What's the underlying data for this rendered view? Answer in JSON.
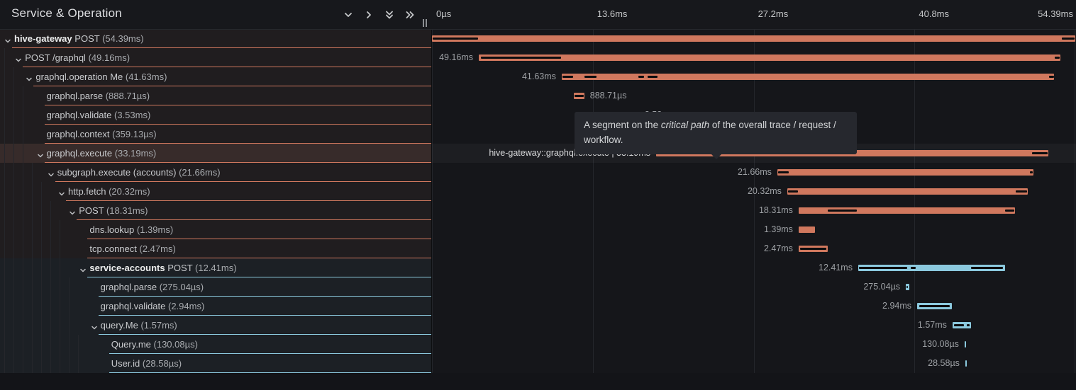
{
  "header": {
    "title": "Service & Operation",
    "controls": [
      {
        "name": "collapse-one-button",
        "icon": "chevron-down-icon"
      },
      {
        "name": "expand-one-button",
        "icon": "chevron-right-icon"
      },
      {
        "name": "collapse-all-button",
        "icon": "chevrons-down-icon"
      },
      {
        "name": "expand-all-button",
        "icon": "chevrons-right-icon"
      }
    ],
    "resizer_icon": "column-resize-handle"
  },
  "colors": {
    "salmon": "#d0785e",
    "blue": "#8bc9de",
    "critical_path": "#0b0c0e",
    "salmon_row_tint": "rgba(208,120,94,0.055)",
    "blue_row_tint": "rgba(139,201,222,0.05)",
    "highlight_row_tint": "rgba(214,140,110,0.17)"
  },
  "timeline": {
    "total_label": "54.39ms",
    "total_ms": 54.39,
    "ticks": [
      {
        "label": "0µs",
        "ms": 0,
        "align": "left"
      },
      {
        "label": "13.6ms",
        "ms": 13.6,
        "align": "left"
      },
      {
        "label": "27.2ms",
        "ms": 27.2,
        "align": "left"
      },
      {
        "label": "40.8ms",
        "ms": 40.8,
        "align": "left"
      },
      {
        "label": "54.39ms",
        "ms": 54.39,
        "align": "right"
      }
    ]
  },
  "tooltip": {
    "parts": [
      {
        "text": "A segment on the "
      },
      {
        "text": "critical path",
        "italic": true
      },
      {
        "text": " of the overall trace / request /"
      },
      {
        "break": true
      },
      {
        "text": "workflow."
      }
    ]
  },
  "rows": [
    {
      "service": "hive-gateway",
      "name": "POST",
      "duration": "54.39ms",
      "depth": 0,
      "expandable": true,
      "color": "salmon",
      "bar": {
        "start_ms": 0,
        "dur_ms": 54.39
      },
      "crit": [
        [
          0.06,
          3.9
        ],
        [
          53.25,
          54.33
        ]
      ],
      "label": null
    },
    {
      "name": "POST /graphql",
      "duration": "49.16ms",
      "depth": 1,
      "expandable": true,
      "color": "salmon",
      "bar": {
        "start_ms": 3.96,
        "dur_ms": 49.16
      },
      "crit": [
        [
          4.14,
          10.91
        ],
        [
          52.65,
          53.07
        ]
      ],
      "label": {
        "text": "49.16ms",
        "side": "left"
      }
    },
    {
      "name": "graphql.operation Me",
      "duration": "41.63ms",
      "depth": 2,
      "expandable": true,
      "color": "salmon",
      "bar": {
        "start_ms": 10.97,
        "dur_ms": 41.63
      },
      "crit": [
        [
          11.03,
          11.93
        ],
        [
          12.89,
          13.91
        ],
        [
          17.45,
          17.93
        ],
        [
          18.23,
          19.07
        ],
        [
          52.17,
          52.59
        ]
      ],
      "label": {
        "text": "41.63ms",
        "side": "left"
      }
    },
    {
      "name": "graphql.parse",
      "duration": "888.71µs",
      "depth": 3,
      "expandable": false,
      "color": "salmon",
      "bar": {
        "start_ms": 11.99,
        "dur_ms": 0.889
      },
      "crit": [
        [
          12.05,
          12.83
        ]
      ],
      "label": {
        "text": "888.71µs",
        "side": "right"
      }
    },
    {
      "name": "graphql.validate",
      "duration": "3.53ms",
      "depth": 3,
      "expandable": false,
      "color": "salmon",
      "bar": {
        "start_ms": 13.97,
        "dur_ms": 3.53
      },
      "crit": [
        [
          14.03,
          17.44
        ]
      ],
      "label": {
        "text": "3.53ms",
        "side": "right"
      }
    },
    {
      "name": "graphql.context",
      "duration": "359.13µs",
      "depth": 3,
      "expandable": false,
      "color": "salmon",
      "bar": {
        "start_ms": 17.55,
        "dur_ms": 0.359
      },
      "crit": [
        [
          17.58,
          17.88
        ]
      ],
      "label": {
        "text": "359.13µs",
        "side": "right"
      }
    },
    {
      "name": "graphql.execute",
      "duration": "33.19ms",
      "depth": 3,
      "expandable": true,
      "color": "salmon",
      "highlighted": true,
      "bar": {
        "start_ms": 18.95,
        "dur_ms": 33.19
      },
      "crit": [
        [
          19.01,
          28.96
        ],
        [
          50.73,
          52.05
        ]
      ],
      "label": {
        "text": "hive-gateway::graphql.execute | 33.19ms",
        "side": "left",
        "emphasis": true
      }
    },
    {
      "name": "subgraph.execute (accounts)",
      "duration": "21.66ms",
      "depth": 4,
      "expandable": true,
      "color": "salmon",
      "bar": {
        "start_ms": 29.2,
        "dur_ms": 21.66
      },
      "crit": [
        [
          29.26,
          30.16
        ],
        [
          50.55,
          50.79
        ]
      ],
      "label": {
        "text": "21.66ms",
        "side": "left"
      }
    },
    {
      "name": "http.fetch",
      "duration": "20.32ms",
      "depth": 5,
      "expandable": true,
      "color": "salmon",
      "bar": {
        "start_ms": 30.04,
        "dur_ms": 20.32
      },
      "crit": [
        [
          30.1,
          30.94
        ],
        [
          49.35,
          50.31
        ]
      ],
      "label": {
        "text": "20.32ms",
        "side": "left"
      }
    },
    {
      "name": "POST",
      "duration": "18.31ms",
      "depth": 6,
      "expandable": true,
      "color": "salmon",
      "bar": {
        "start_ms": 31.0,
        "dur_ms": 18.31
      },
      "crit": [
        [
          33.46,
          35.92
        ],
        [
          48.45,
          49.23
        ]
      ],
      "label": {
        "text": "18.31ms",
        "side": "left"
      }
    },
    {
      "name": "dns.lookup",
      "duration": "1.39ms",
      "depth": 7,
      "expandable": false,
      "color": "salmon",
      "bar": {
        "start_ms": 31.0,
        "dur_ms": 1.39
      },
      "crit": [],
      "label": {
        "text": "1.39ms",
        "side": "left"
      }
    },
    {
      "name": "tcp.connect",
      "duration": "2.47ms",
      "depth": 7,
      "expandable": false,
      "color": "salmon",
      "bar": {
        "start_ms": 31.0,
        "dur_ms": 2.47
      },
      "crit": [
        [
          31.12,
          33.34
        ]
      ],
      "label": {
        "text": "2.47ms",
        "side": "left"
      }
    },
    {
      "service": "service-accounts",
      "name": "POST",
      "duration": "12.41ms",
      "depth": 7,
      "expandable": true,
      "color": "blue",
      "bar": {
        "start_ms": 36.04,
        "dur_ms": 12.41
      },
      "crit": [
        [
          36.1,
          40.18
        ],
        [
          40.48,
          40.9
        ],
        [
          45.57,
          48.27
        ]
      ],
      "label": {
        "text": "12.41ms",
        "side": "left"
      }
    },
    {
      "name": "graphql.parse",
      "duration": "275.04µs",
      "depth": 8,
      "expandable": false,
      "color": "blue",
      "bar": {
        "start_ms": 40.06,
        "dur_ms": 0.275
      },
      "crit": [
        [
          40.12,
          40.22
        ]
      ],
      "label": {
        "text": "275.04µs",
        "side": "left"
      }
    },
    {
      "name": "graphql.validate",
      "duration": "2.94ms",
      "depth": 8,
      "expandable": false,
      "color": "blue",
      "bar": {
        "start_ms": 41.02,
        "dur_ms": 2.94
      },
      "crit": [
        [
          41.2,
          43.78
        ]
      ],
      "label": {
        "text": "2.94ms",
        "side": "left"
      }
    },
    {
      "name": "query.Me",
      "duration": "1.57ms",
      "depth": 8,
      "expandable": true,
      "color": "blue",
      "bar": {
        "start_ms": 44.01,
        "dur_ms": 1.57
      },
      "crit": [
        [
          44.13,
          44.97
        ],
        [
          45.21,
          45.45
        ]
      ],
      "label": {
        "text": "1.57ms",
        "side": "left"
      }
    },
    {
      "name": "Query.me",
      "duration": "130.08µs",
      "depth": 9,
      "expandable": false,
      "color": "blue",
      "bar": {
        "start_ms": 45.03,
        "dur_ms": 0.13
      },
      "crit": [],
      "label": {
        "text": "130.08µs",
        "side": "left"
      }
    },
    {
      "name": "User.id",
      "duration": "28.58µs",
      "depth": 9,
      "expandable": false,
      "color": "blue",
      "bar": {
        "start_ms": 45.09,
        "dur_ms": 0.029
      },
      "crit": [],
      "label": {
        "text": "28.58µs",
        "side": "left"
      }
    }
  ]
}
